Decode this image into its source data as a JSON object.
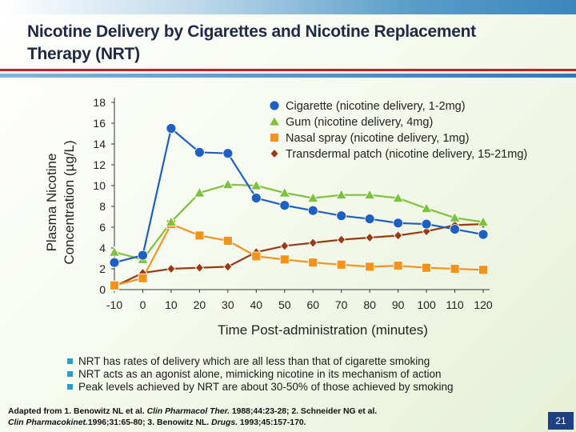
{
  "slide": {
    "title": "Nicotine Delivery by Cigarettes and Nicotine Replacement Therapy (NRT)",
    "page_number": "21"
  },
  "bullets": [
    "NRT has rates of delivery which are all less than that of cigarette smoking",
    "NRT acts as an agonist alone, mimicking nicotine in its mechanism of action",
    "Peak levels achieved by NRT are about 30-50% of those achieved by smoking"
  ],
  "citation": {
    "p1": "Adapted from 1. Benowitz NL et al. ",
    "j1": "Clin Pharmacol Ther.",
    "p2": " 1988;44:23-28;  2. Schneider NG et al. ",
    "j2": "Clin Pharmacokinet.",
    "p3": "1996;31:65-80;  3. Benowitz NL. ",
    "j3": "Drugs.",
    "p4": " 1993;45:157-170."
  },
  "colors": {
    "accent_red": "#c81e2c",
    "accent_blue": "#2f79b5",
    "bullet": "#2e9cc6",
    "page_badge": "#1f3f85"
  },
  "chart_data": {
    "type": "line",
    "xlabel": "Time Post-administration (minutes)",
    "ylabel": "Plasma Nicotine Concentration (µg/L)",
    "x": [
      -10,
      0,
      10,
      20,
      30,
      40,
      50,
      60,
      70,
      80,
      90,
      100,
      110,
      120
    ],
    "xticks": [
      -10,
      0,
      10,
      20,
      30,
      40,
      50,
      60,
      70,
      80,
      90,
      100,
      110,
      120
    ],
    "yticks": [
      0,
      2,
      4,
      6,
      8,
      10,
      12,
      14,
      16,
      18
    ],
    "ylim": [
      0,
      18
    ],
    "xlim": [
      -10,
      120
    ],
    "grid": false,
    "legend_position": "top-right",
    "series": [
      {
        "name": "Cigarette (nicotine delivery, 1-2mg)",
        "marker": "circle",
        "color": "#1e5fc4",
        "values": [
          2.6,
          3.3,
          15.5,
          13.2,
          13.1,
          8.8,
          8.1,
          7.6,
          7.1,
          6.8,
          6.4,
          6.3,
          5.8,
          5.3
        ]
      },
      {
        "name": "Gum (nicotine delivery, 4mg)",
        "marker": "triangle",
        "color": "#7cc23a",
        "values": [
          3.6,
          2.9,
          6.5,
          9.3,
          10.1,
          10.0,
          9.3,
          8.8,
          9.1,
          9.1,
          8.8,
          7.8,
          6.9,
          6.5
        ]
      },
      {
        "name": "Nasal spray (nicotine delivery, 1mg)",
        "marker": "square",
        "color": "#f3931c",
        "values": [
          0.4,
          1.1,
          6.3,
          5.2,
          4.7,
          3.2,
          2.9,
          2.6,
          2.4,
          2.2,
          2.3,
          2.1,
          2.0,
          1.9
        ]
      },
      {
        "name": "Transdermal patch (nicotine delivery, 15-21mg)",
        "marker": "diamond",
        "color": "#9a3a12",
        "values": [
          0.3,
          1.6,
          2.0,
          2.1,
          2.2,
          3.6,
          4.2,
          4.5,
          4.8,
          5.0,
          5.2,
          5.6,
          6.2,
          6.3
        ]
      }
    ]
  }
}
